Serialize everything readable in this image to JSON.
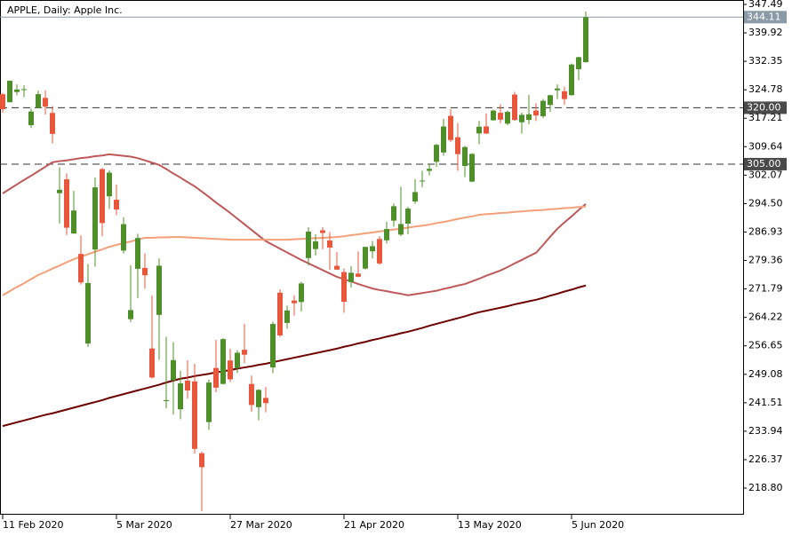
{
  "chart_data": {
    "type": "candlestick",
    "title": "APPLE, Daily:  Apple Inc.",
    "categories": [
      "11 Feb 2020",
      null,
      null,
      null,
      null,
      null,
      null,
      null,
      null,
      null,
      null,
      null,
      null,
      null,
      null,
      null,
      "5 Mar 2020",
      null,
      null,
      null,
      null,
      null,
      null,
      null,
      null,
      null,
      null,
      null,
      null,
      null,
      null,
      null,
      "27 Mar 2020",
      null,
      null,
      null,
      null,
      null,
      null,
      null,
      null,
      null,
      null,
      null,
      null,
      null,
      null,
      null,
      "21 Apr 2020",
      null,
      null,
      null,
      null,
      null,
      null,
      null,
      null,
      null,
      null,
      null,
      null,
      null,
      null,
      null,
      "13 May 2020",
      null,
      null,
      null,
      null,
      null,
      null,
      null,
      null,
      null,
      null,
      null,
      null,
      null,
      null,
      null,
      "5 Jun 2020",
      null,
      null
    ],
    "open": [
      323.6,
      321.47,
      324.19,
      324.74,
      315.36,
      320.0,
      322.63,
      318.62,
      297.26,
      300.95,
      286.53,
      281.1,
      257.26,
      282.28,
      303.67,
      296.44,
      295.52,
      282.0,
      263.75,
      277.14,
      277.39,
      255.94,
      264.89,
      241.95,
      247.51,
      239.77,
      247.39,
      247.18,
      228.08,
      236.36,
      250.75,
      246.52,
      252.75,
      250.74,
      255.6,
      246.5,
      240.34,
      242.8,
      250.9,
      270.8,
      262.74,
      268.7,
      268.31,
      280.0,
      282.4,
      287.38,
      284.69,
      277.95,
      276.28,
      273.61,
      275.87,
      277.2,
      281.8,
      285.08,
      284.73,
      289.96,
      286.25,
      289.17,
      295.06,
      300.46,
      303.22,
      305.64,
      308.1,
      317.83,
      312.15,
      304.51,
      300.35,
      313.17,
      315.03,
      316.68,
      318.66,
      315.77,
      323.5,
      316.14,
      316.77,
      319.25,
      317.75,
      320.75,
      324.66,
      324.39,
      323.35,
      330.25,
      332.14
    ],
    "high": [
      323.9,
      327.22,
      326.22,
      325.98,
      319.75,
      324.57,
      324.65,
      320.45,
      304.18,
      302.53,
      297.88,
      286.0,
      278.41,
      301.44,
      304.0,
      303.4,
      299.55,
      290.82,
      278.09,
      286.44,
      281.22,
      270.0,
      279.92,
      259.08,
      257.61,
      250.0,
      252.84,
      251.83,
      228.5,
      247.69,
      258.25,
      258.68,
      255.87,
      255.52,
      262.49,
      248.72,
      245.15,
      245.7,
      263.11,
      271.7,
      267.37,
      270.07,
      273.7,
      288.25,
      286.33,
      288.2,
      286.95,
      281.68,
      277.25,
      277.9,
      281.75,
      283.01,
      284.54,
      285.83,
      289.67,
      294.53,
      299.0,
      293.69,
      301.0,
      303.24,
      305.17,
      310.35,
      317.05,
      319.69,
      315.95,
      309.79,
      307.9,
      316.5,
      318.52,
      319.52,
      320.89,
      319.23,
      324.24,
      318.71,
      323.44,
      321.15,
      322.35,
      323.44,
      326.2,
      325.62,
      331.75,
      333.6,
      345.61
    ],
    "low": [
      318.71,
      321.47,
      323.35,
      322.85,
      314.61,
      320.0,
      318.21,
      310.5,
      289.23,
      286.13,
      286.5,
      272.96,
      256.37,
      277.72,
      285.8,
      293.13,
      291.41,
      281.23,
      263.0,
      269.37,
      271.86,
      248.0,
      252.95,
      240.0,
      238.4,
      237.12,
      242.61,
      228.0,
      212.61,
      234.3,
      244.3,
      246.36,
      247.05,
      249.4,
      252.0,
      239.13,
      236.9,
      238.97,
      249.38,
      259.0,
      261.23,
      264.7,
      265.83,
      278.05,
      280.63,
      282.35,
      276.86,
      276.85,
      265.43,
      272.2,
      274.87,
      277.0,
      279.95,
      278.2,
      283.89,
      288.35,
      285.85,
      286.32,
      294.46,
      298.87,
      301.97,
      304.29,
      307.24,
      310.91,
      303.21,
      301.53,
      300.21,
      310.32,
      313.01,
      316.52,
      315.87,
      315.35,
      316.5,
      313.09,
      315.63,
      316.47,
      317.21,
      318.93,
      322.3,
      320.78,
      323.23,
      327.32,
      332.0
    ],
    "close": [
      319.61,
      327.2,
      324.87,
      324.95,
      319.0,
      323.62,
      320.3,
      313.05,
      298.18,
      288.08,
      292.65,
      273.52,
      273.36,
      298.81,
      289.32,
      302.74,
      292.92,
      289.03,
      266.17,
      285.34,
      275.43,
      248.23,
      277.97,
      242.21,
      252.86,
      246.67,
      244.78,
      229.24,
      224.37,
      246.88,
      245.52,
      258.44,
      247.74,
      254.81,
      254.29,
      240.91,
      244.93,
      241.41,
      262.47,
      259.43,
      266.07,
      267.99,
      273.25,
      287.05,
      284.43,
      286.69,
      282.8,
      276.93,
      268.37,
      276.1,
      275.03,
      282.97,
      283.17,
      278.58,
      287.73,
      293.8,
      289.07,
      293.16,
      297.56,
      300.63,
      303.74,
      310.13,
      315.01,
      311.41,
      307.65,
      309.54,
      307.71,
      314.96,
      313.14,
      319.23,
      316.85,
      318.89,
      316.73,
      318.11,
      318.25,
      317.94,
      321.85,
      323.34,
      325.12,
      322.32,
      331.5,
      333.46,
      344.11
    ],
    "up_color": "#4f8f2a",
    "down_color": "#e8573c",
    "lines": [
      {
        "color": "#c0585a",
        "values": [
          297.2,
          298.4,
          299.6,
          300.8,
          301.9,
          303.1,
          304.3,
          305.5,
          305.8,
          306.0,
          306.3,
          306.6,
          306.8,
          307.1,
          307.3,
          307.6,
          307.4,
          307.2,
          307.0,
          306.6,
          306.0,
          305.4,
          304.8,
          303.7,
          302.5,
          301.4,
          300.2,
          299.1,
          297.7,
          296.3,
          294.8,
          293.4,
          292.0,
          290.5,
          289.0,
          287.5,
          286.0,
          284.5,
          283.5,
          282.5,
          281.5,
          280.5,
          279.5,
          278.6,
          277.7,
          276.8,
          275.9,
          275.0,
          274.4,
          273.8,
          273.1,
          272.5,
          271.9,
          271.5,
          271.2,
          270.8,
          270.5,
          270.1,
          270.4,
          270.7,
          271.0,
          271.3,
          271.8,
          272.2,
          272.7,
          273.1,
          273.8,
          274.5,
          275.3,
          276.0,
          276.7,
          277.6,
          278.6,
          279.5,
          280.5,
          281.4,
          283.5,
          285.7,
          287.8,
          289.5,
          291.1,
          292.8,
          294.4
        ]
      },
      {
        "color": "#f4a07a",
        "values": [
          270.1,
          271.2,
          272.3,
          273.3,
          274.4,
          275.5,
          276.3,
          277.2,
          278.0,
          278.9,
          279.7,
          280.4,
          281.0,
          281.7,
          282.3,
          283.0,
          283.5,
          284.0,
          284.4,
          284.9,
          285.4,
          285.4,
          285.5,
          285.5,
          285.6,
          285.6,
          285.5,
          285.4,
          285.3,
          285.2,
          285.1,
          285.0,
          284.9,
          284.9,
          284.9,
          284.9,
          284.9,
          284.9,
          284.9,
          284.9,
          284.9,
          285.0,
          285.1,
          285.2,
          285.3,
          285.4,
          285.5,
          285.6,
          285.8,
          286.1,
          286.3,
          286.6,
          286.8,
          287.1,
          287.3,
          287.6,
          287.8,
          288.1,
          288.4,
          288.6,
          288.9,
          289.3,
          289.6,
          290.0,
          290.4,
          290.8,
          291.1,
          291.5,
          291.7,
          291.8,
          292.0,
          292.1,
          292.3,
          292.4,
          292.6,
          292.7,
          292.8,
          293.0,
          293.1,
          293.3,
          293.4,
          293.6,
          293.7
        ]
      },
      {
        "color": "#6e0000",
        "values": [
          235.3,
          235.8,
          236.3,
          236.8,
          237.3,
          237.8,
          238.3,
          238.7,
          239.2,
          239.7,
          240.2,
          240.7,
          241.2,
          241.7,
          242.2,
          242.8,
          243.3,
          243.8,
          244.3,
          244.8,
          245.3,
          245.8,
          246.3,
          246.9,
          247.4,
          247.9,
          248.2,
          248.6,
          248.9,
          249.2,
          249.6,
          249.9,
          250.2,
          250.6,
          250.9,
          251.2,
          251.6,
          251.9,
          252.3,
          252.7,
          253.1,
          253.5,
          253.9,
          254.3,
          254.7,
          255.1,
          255.5,
          255.9,
          256.4,
          256.8,
          257.3,
          257.7,
          258.2,
          258.6,
          259.1,
          259.5,
          260.0,
          260.4,
          260.9,
          261.4,
          262.0,
          262.5,
          263.0,
          263.5,
          264.0,
          264.5,
          265.1,
          265.6,
          266.0,
          266.4,
          266.8,
          267.2,
          267.7,
          268.1,
          268.5,
          268.9,
          269.4,
          270.0,
          270.5,
          271.1,
          271.6,
          272.2,
          272.7
        ]
      }
    ],
    "levels": [
      {
        "value": 320,
        "label": "320.00"
      },
      {
        "value": 305,
        "label": "305.00"
      }
    ],
    "last_price": 344.11,
    "ylim": [
      211.72,
      348.67
    ],
    "yticks": [
      347.49,
      339.92,
      332.35,
      324.78,
      317.21,
      309.64,
      302.07,
      {
        "value": 294.5,
        "label": "294.50"
      },
      286.93,
      279.36,
      271.79,
      264.22,
      256.65,
      249.08,
      241.51,
      233.94,
      226.37,
      {
        "value": 218.8,
        "label": "218.80"
      }
    ]
  }
}
